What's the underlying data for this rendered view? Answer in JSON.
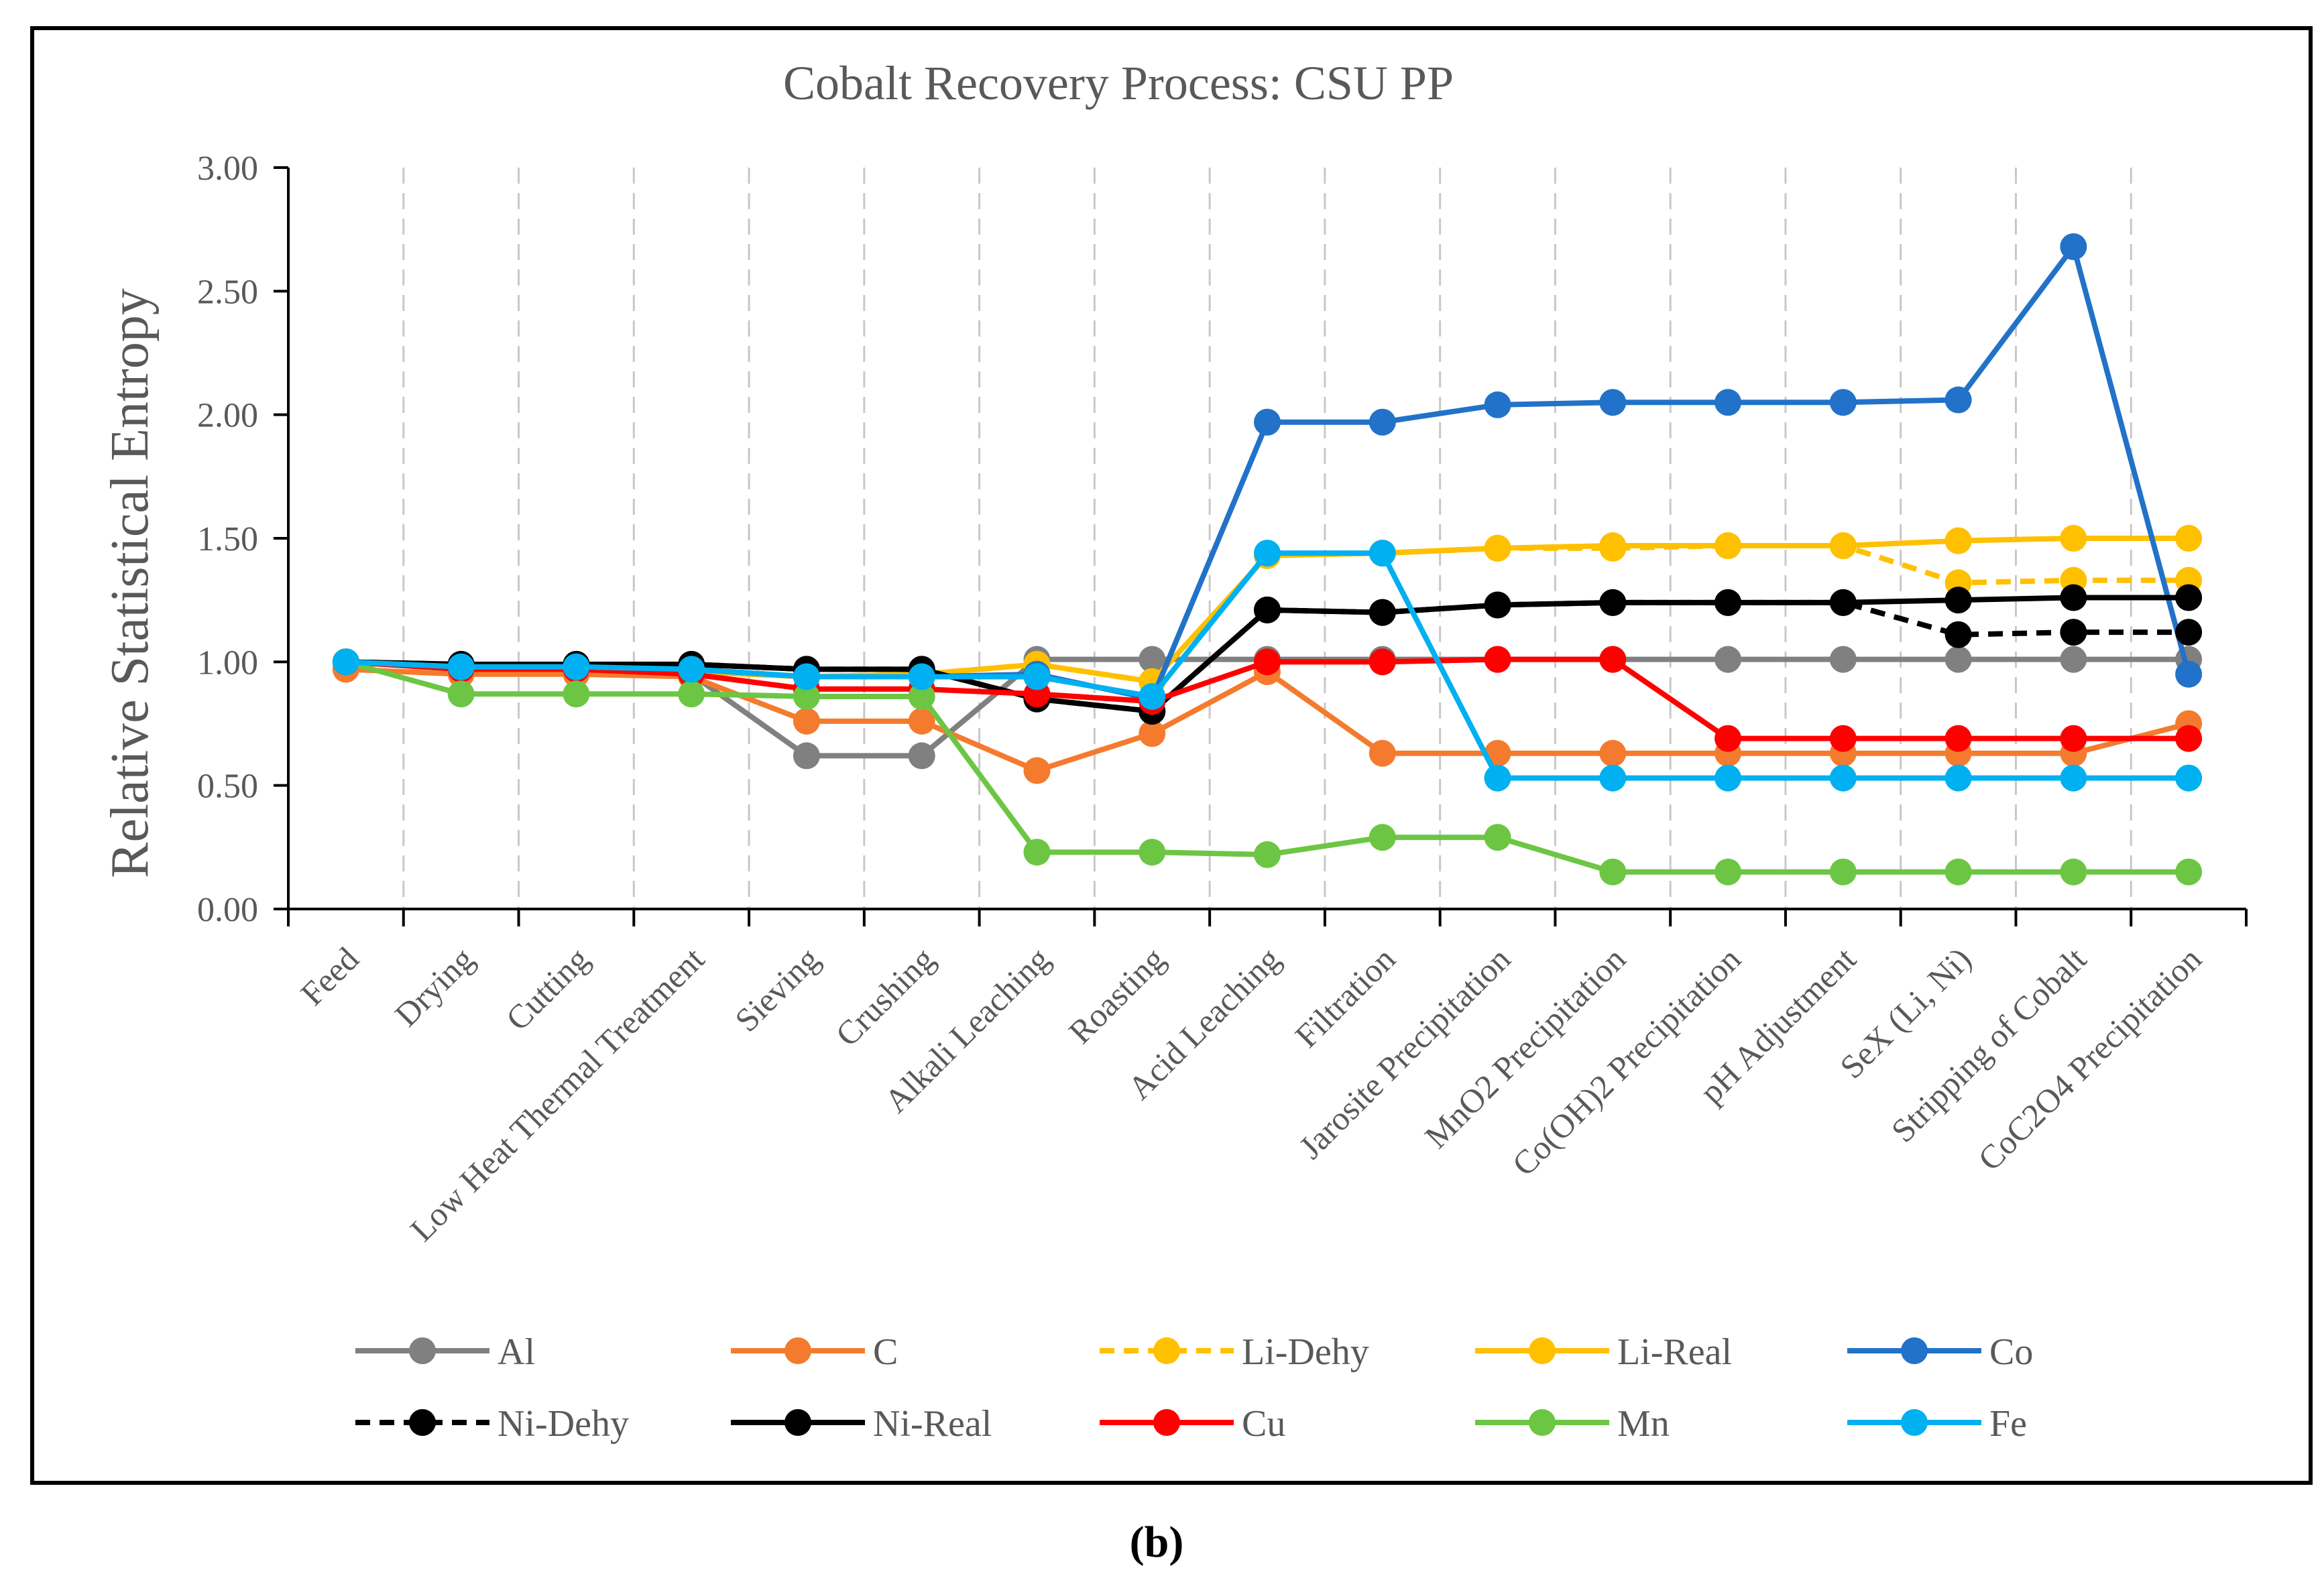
{
  "figure_label": "(b)",
  "colors": {
    "Al": "#808080",
    "C": "#F47B2E",
    "Li-Dehy": "#FFC000",
    "Li-Real": "#FFC000",
    "Co": "#2172C8",
    "Ni-Dehy": "#000000",
    "Ni-Real": "#000000",
    "Cu": "#FF0000",
    "Mn": "#6CC644",
    "Fe": "#00B0F0"
  },
  "chart_data": {
    "type": "line",
    "title": "Cobalt Recovery Process: CSU PP",
    "xlabel": "",
    "ylabel": "Relative Statistical Entropy",
    "ylim": [
      0,
      3
    ],
    "yticks": [
      "0.00",
      "0.50",
      "1.00",
      "1.50",
      "2.00",
      "2.50",
      "3.00"
    ],
    "grid": "vertical dashed",
    "legend_position": "bottom",
    "categories": [
      "Feed",
      "Drying",
      "Cutting",
      "Low Heat Thermal Treatment",
      "Sieving",
      "Crushing",
      "Alkali Leaching",
      "Roasting",
      "Acid Leaching",
      "Filtration",
      "Jarosite Precipitation",
      "MnO2 Precipitation",
      "Co(OH)2 Precipitation",
      "pH Adjustment",
      "SeX (Li, Ni)",
      "Stripping of Cobalt",
      "CoC2O4 Precipitation"
    ],
    "series": [
      {
        "name": "Al",
        "dashed": false,
        "values": [
          1.0,
          0.97,
          0.97,
          0.95,
          0.62,
          0.62,
          1.01,
          1.01,
          1.01,
          1.01,
          1.01,
          1.01,
          1.01,
          1.01,
          1.01,
          1.01,
          1.01
        ]
      },
      {
        "name": "C",
        "dashed": false,
        "values": [
          0.97,
          0.95,
          0.95,
          0.94,
          0.76,
          0.76,
          0.56,
          0.71,
          0.96,
          0.63,
          0.63,
          0.63,
          0.63,
          0.63,
          0.63,
          0.63,
          0.75
        ]
      },
      {
        "name": "Li-Dehy",
        "dashed": true,
        "values": [
          1.0,
          0.97,
          0.97,
          0.96,
          0.94,
          0.95,
          0.99,
          0.92,
          1.43,
          1.44,
          1.46,
          1.46,
          1.47,
          1.47,
          1.32,
          1.33,
          1.33
        ]
      },
      {
        "name": "Li-Real",
        "dashed": false,
        "values": [
          1.0,
          0.97,
          0.97,
          0.96,
          0.94,
          0.95,
          0.99,
          0.92,
          1.43,
          1.44,
          1.46,
          1.47,
          1.47,
          1.47,
          1.49,
          1.5,
          1.5
        ]
      },
      {
        "name": "Co",
        "dashed": false,
        "values": [
          1.0,
          0.98,
          0.98,
          0.97,
          0.94,
          0.94,
          0.95,
          0.85,
          1.97,
          1.97,
          2.04,
          2.05,
          2.05,
          2.05,
          2.06,
          2.68,
          0.95
        ]
      },
      {
        "name": "Ni-Dehy",
        "dashed": true,
        "values": [
          1.0,
          0.99,
          0.99,
          0.99,
          0.97,
          0.97,
          0.85,
          0.8,
          1.21,
          1.2,
          1.23,
          1.24,
          1.24,
          1.24,
          1.11,
          1.12,
          1.12
        ]
      },
      {
        "name": "Ni-Real",
        "dashed": false,
        "values": [
          1.0,
          0.99,
          0.99,
          0.99,
          0.97,
          0.97,
          0.85,
          0.8,
          1.21,
          1.2,
          1.23,
          1.24,
          1.24,
          1.24,
          1.25,
          1.26,
          1.26
        ]
      },
      {
        "name": "Cu",
        "dashed": false,
        "values": [
          1.0,
          0.97,
          0.97,
          0.95,
          0.89,
          0.89,
          0.87,
          0.84,
          1.0,
          1.0,
          1.01,
          1.01,
          0.69,
          0.69,
          0.69,
          0.69,
          0.69
        ]
      },
      {
        "name": "Mn",
        "dashed": false,
        "values": [
          1.0,
          0.87,
          0.87,
          0.87,
          0.86,
          0.86,
          0.23,
          0.23,
          0.22,
          0.29,
          0.29,
          0.15,
          0.15,
          0.15,
          0.15,
          0.15,
          0.15
        ]
      },
      {
        "name": "Fe",
        "dashed": false,
        "values": [
          1.0,
          0.98,
          0.98,
          0.97,
          0.94,
          0.94,
          0.94,
          0.86,
          1.44,
          1.44,
          0.53,
          0.53,
          0.53,
          0.53,
          0.53,
          0.53,
          0.53
        ]
      }
    ],
    "legend_rows": [
      [
        "Al",
        "C",
        "Li-Dehy",
        "Li-Real",
        "Co"
      ],
      [
        "Ni-Dehy",
        "Ni-Real",
        "Cu",
        "Mn",
        "Fe"
      ]
    ]
  }
}
